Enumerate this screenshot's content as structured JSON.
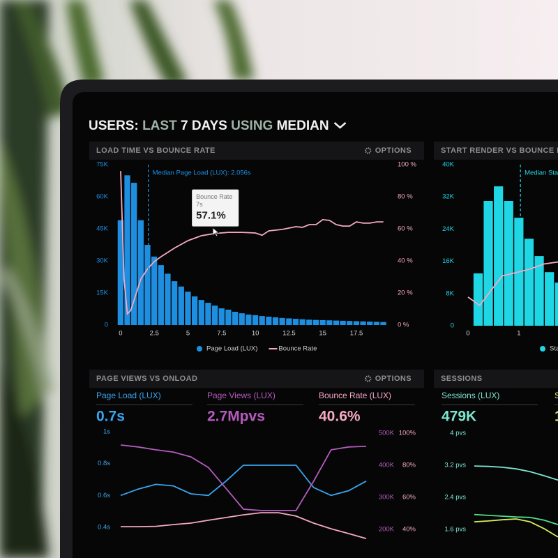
{
  "header": {
    "title_parts": [
      {
        "text": "USERS:",
        "color": "#f2f2f2"
      },
      {
        "text": "LAST",
        "color": "#9fb3a8"
      },
      {
        "text": "7 DAYS",
        "color": "#f2f2f2"
      },
      {
        "text": "USING",
        "color": "#9fb3a8"
      },
      {
        "text": "MEDIAN",
        "color": "#f2f2f2"
      }
    ]
  },
  "chart_data": [
    {
      "type": "histogram",
      "title": "LOAD TIME VS BOUNCE RATE",
      "options": "OPTIONS",
      "bins": [
        -0.25,
        0.25,
        0.75,
        1.25,
        1.75,
        2.25,
        2.75,
        3.25,
        3.75,
        4.25,
        4.75,
        5.25,
        5.75,
        6.25,
        6.75,
        7.25,
        7.75,
        8.25,
        8.75,
        9.25,
        9.75,
        10.25,
        10.75,
        11.25,
        11.75,
        12.25,
        12.75,
        13.25,
        13.75,
        14.25,
        14.75,
        15.25,
        15.75,
        16.25,
        16.75,
        17.25,
        17.75,
        18.25,
        18.75,
        19.25,
        19.75
      ],
      "series": [
        {
          "name": "Page Load (LUX)",
          "color": "#1e8fe0",
          "values": [
            49000,
            70000,
            66500,
            49000,
            37500,
            32000,
            28000,
            24000,
            20500,
            18000,
            15600,
            13400,
            11700,
            10400,
            9100,
            7800,
            7200,
            6200,
            5500,
            4900,
            4600,
            4200,
            3900,
            3600,
            3300,
            3100,
            2900,
            2700,
            2500,
            2400,
            2300,
            2200,
            2100,
            2000,
            1900,
            1800,
            1700,
            1600,
            1500,
            1400
          ]
        },
        {
          "name": "Bounce Rate",
          "color": "#f5a9c3",
          "type": "line",
          "axis": "y2",
          "x": [
            0,
            0.25,
            0.5,
            0.75,
            1,
            1.5,
            2,
            2.5,
            3,
            4,
            5,
            6,
            7,
            8,
            9,
            10,
            10.5,
            11,
            12,
            13,
            13.5,
            14,
            14.5,
            15,
            15.5,
            16,
            16.5,
            17,
            17.5,
            18,
            18.5,
            19,
            19.5
          ],
          "values": [
            96,
            28.7,
            7,
            9,
            15.6,
            28.7,
            35,
            39.6,
            42.6,
            48,
            52.6,
            55.7,
            57.1,
            57.8,
            57.8,
            57.4,
            56,
            58.7,
            59.6,
            61.3,
            60.9,
            62.6,
            62.6,
            65.7,
            65.2,
            62.6,
            61.7,
            61.7,
            64.3,
            63.5,
            63.5,
            64.3,
            64.3
          ]
        }
      ],
      "xlim": [
        -0.5,
        20
      ],
      "xticks": [
        0,
        2.5,
        5,
        7.5,
        10,
        12.5,
        15,
        17.5
      ],
      "ylim": [
        0,
        75000
      ],
      "yticks": [
        0,
        {
          "value": 15000,
          "label": "15K"
        },
        {
          "value": 30000,
          "label": "30K"
        },
        {
          "value": 45000,
          "label": "45K"
        },
        {
          "value": 60000,
          "label": "60K"
        },
        {
          "value": 75000,
          "label": "75K"
        }
      ],
      "y2lim": [
        0,
        100
      ],
      "y2ticks": [
        {
          "value": 0,
          "label": "0 %"
        },
        {
          "value": 20,
          "label": "20 %"
        },
        {
          "value": 40,
          "label": "40 %"
        },
        {
          "value": 60,
          "label": "60 %"
        },
        {
          "value": 80,
          "label": "80 %"
        },
        {
          "value": 100,
          "label": "100 %"
        }
      ],
      "median": {
        "value": 2.056,
        "label": "Median Page Load (LUX): 2.056s"
      },
      "tooltip": {
        "title": "Bounce Rate",
        "x": {
          "value": 7,
          "label": "7s"
        },
        "y": {
          "value": 57.1,
          "label": "57.1%"
        }
      }
    },
    {
      "type": "histogram",
      "title": "START RENDER VS BOUNCE R",
      "bins": [
        0.1,
        0.3,
        0.5,
        0.7,
        0.9,
        1.1,
        1.3,
        1.5,
        1.7,
        1.9
      ],
      "series": [
        {
          "name": "Sta",
          "color": "#1fd6e4",
          "values": [
            13000,
            31000,
            34600,
            31000,
            26800,
            21600,
            17300,
            13300,
            10700
          ]
        },
        {
          "color": "#f5a9c3",
          "type": "line",
          "axis": "y2",
          "x": [
            0,
            0.23,
            0.67,
            0.95,
            1.22,
            1.49,
            1.77
          ],
          "values": [
            17.8,
            12.6,
            30.9,
            33,
            35.2,
            38.3,
            39.6
          ]
        }
      ],
      "xlim": [
        -0.15,
        1.78
      ],
      "xticks": [
        0,
        1
      ],
      "ylim": [
        0,
        40000
      ],
      "yticks": [
        0,
        {
          "value": 8000,
          "label": "8K"
        },
        {
          "value": 16000,
          "label": "16K"
        },
        {
          "value": 24000,
          "label": "24K"
        },
        {
          "value": 32000,
          "label": "32K"
        },
        {
          "value": 40000,
          "label": "40K"
        }
      ],
      "y2lim": [
        0,
        100
      ],
      "median": {
        "value": 1.03,
        "label": "Median Sta"
      }
    },
    {
      "type": "line",
      "title": "PAGE VIEWS VS ONLOAD",
      "options": "OPTIONS",
      "categories": [
        null,
        null,
        null,
        null,
        null,
        null,
        null,
        null,
        null,
        null,
        null,
        null,
        null,
        null,
        null
      ],
      "series": [
        {
          "name": "Page Load (LUX)",
          "kpi": "0.7s",
          "color": "#3aa6ee",
          "values": [
            0.6,
            0.64,
            0.67,
            0.66,
            0.61,
            0.6,
            0.69,
            0.79,
            0.79,
            0.79,
            0.79,
            0.65,
            0.6,
            0.63,
            0.69
          ]
        },
        {
          "name": "Page Views (LUX)",
          "kpi": "2.7Mpvs",
          "color": "#b45bbd",
          "axis": "y2",
          "values": [
            463000,
            457000,
            448000,
            441000,
            426000,
            393000,
            328000,
            263000,
            259000,
            259000,
            259000,
            350000,
            448000,
            457000,
            459000
          ]
        },
        {
          "name": "Bounce Rate (LUX)",
          "kpi": "40.6%",
          "color": "#f5a9c3",
          "axis": "y3",
          "values": [
            41.7,
            41.7,
            41.9,
            43,
            43.9,
            45.7,
            47.4,
            49.1,
            50.4,
            50.4,
            48.3,
            43.9,
            40.4,
            37.4,
            34.3
          ]
        }
      ],
      "ylim": [
        0.4,
        1
      ],
      "yticks": [
        {
          "value": 0.4,
          "label": "0.4s"
        },
        {
          "value": 0.6,
          "label": "0.6s"
        },
        {
          "value": 0.8,
          "label": "0.8s"
        },
        {
          "value": 1,
          "label": "1s"
        }
      ],
      "y2lim": [
        200000,
        500000
      ],
      "y2ticks": [
        {
          "value": 200000,
          "label": "200K"
        },
        {
          "value": 300000,
          "label": "300K"
        },
        {
          "value": 400000,
          "label": "400K"
        },
        {
          "value": 500000,
          "label": "500K"
        }
      ],
      "y3lim": [
        40,
        100
      ],
      "y3ticks": [
        {
          "value": 40,
          "label": "40%"
        },
        {
          "value": 60,
          "label": "60%"
        },
        {
          "value": 80,
          "label": "80%"
        },
        {
          "value": 100,
          "label": "100%"
        }
      ]
    },
    {
      "type": "line",
      "title": "SESSIONS",
      "categories": [
        null,
        null,
        null,
        null,
        null,
        null,
        null
      ],
      "series": [
        {
          "name": "Sessions (LUX)",
          "kpi": "479K",
          "color": "#7ee6cf",
          "values": [
            3.18,
            3.17,
            3.15,
            3.11,
            3.04,
            2.94,
            2.83
          ]
        },
        {
          "name": "S",
          "kpi": "1",
          "color": "#d6ef5a",
          "values": [
            1.79,
            1.81,
            1.84,
            1.86,
            1.79,
            1.62,
            1.41
          ]
        },
        {
          "color": "#4fdc8c",
          "values": [
            1.97,
            1.95,
            1.93,
            1.91,
            1.9,
            1.83,
            1.72
          ]
        }
      ],
      "ylim": [
        1.6,
        4
      ],
      "yticks": [
        {
          "value": 1.6,
          "label": "1.6 pvs"
        },
        {
          "value": 2.4,
          "label": "2.4 pvs"
        },
        {
          "value": 3.2,
          "label": "3.2 pvs"
        },
        {
          "value": 4,
          "label": "4 pvs"
        }
      ]
    }
  ]
}
